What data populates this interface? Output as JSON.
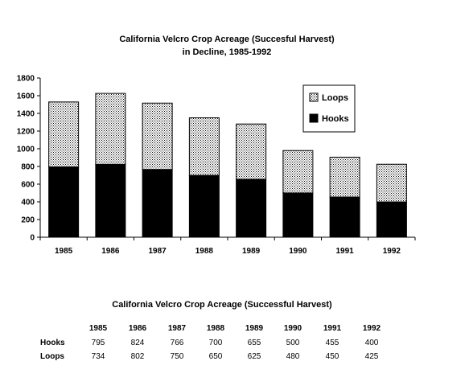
{
  "chart_data": {
    "type": "bar",
    "stacked": true,
    "title": "California Velcro Crop Acreage (Succesful Harvest)",
    "subtitle": "in Decline, 1985-1992",
    "categories": [
      "1985",
      "1986",
      "1987",
      "1988",
      "1989",
      "1990",
      "1991",
      "1992"
    ],
    "series": [
      {
        "name": "Hooks",
        "values": [
          795,
          824,
          766,
          700,
          655,
          500,
          455,
          400
        ],
        "color": "#000000",
        "fill": "solid"
      },
      {
        "name": "Loops",
        "values": [
          734,
          802,
          750,
          650,
          625,
          480,
          450,
          425
        ],
        "color": "#000000",
        "fill": "dotted"
      }
    ],
    "ylim": [
      0,
      1800
    ],
    "yticks": [
      0,
      200,
      400,
      600,
      800,
      1000,
      1200,
      1400,
      1600,
      1800
    ],
    "ytick_labels": [
      "0",
      "200",
      "400",
      "600",
      "800",
      "1000",
      "1200",
      "1400",
      "1600",
      "1800"
    ],
    "grid": false,
    "legend_position": "top-right",
    "legend_order": [
      "Loops",
      "Hooks"
    ],
    "xlabel": "",
    "ylabel": ""
  },
  "table": {
    "title": "California Velcro Crop Acreage (Successful Harvest)",
    "headers": [
      "1985",
      "1986",
      "1987",
      "1988",
      "1989",
      "1990",
      "1991",
      "1992"
    ],
    "rows": [
      {
        "label": "Hooks",
        "values": [
          "795",
          "824",
          "766",
          "700",
          "655",
          "500",
          "455",
          "400"
        ]
      },
      {
        "label": "Loops",
        "values": [
          "734",
          "802",
          "750",
          "650",
          "625",
          "480",
          "450",
          "425"
        ]
      }
    ]
  }
}
